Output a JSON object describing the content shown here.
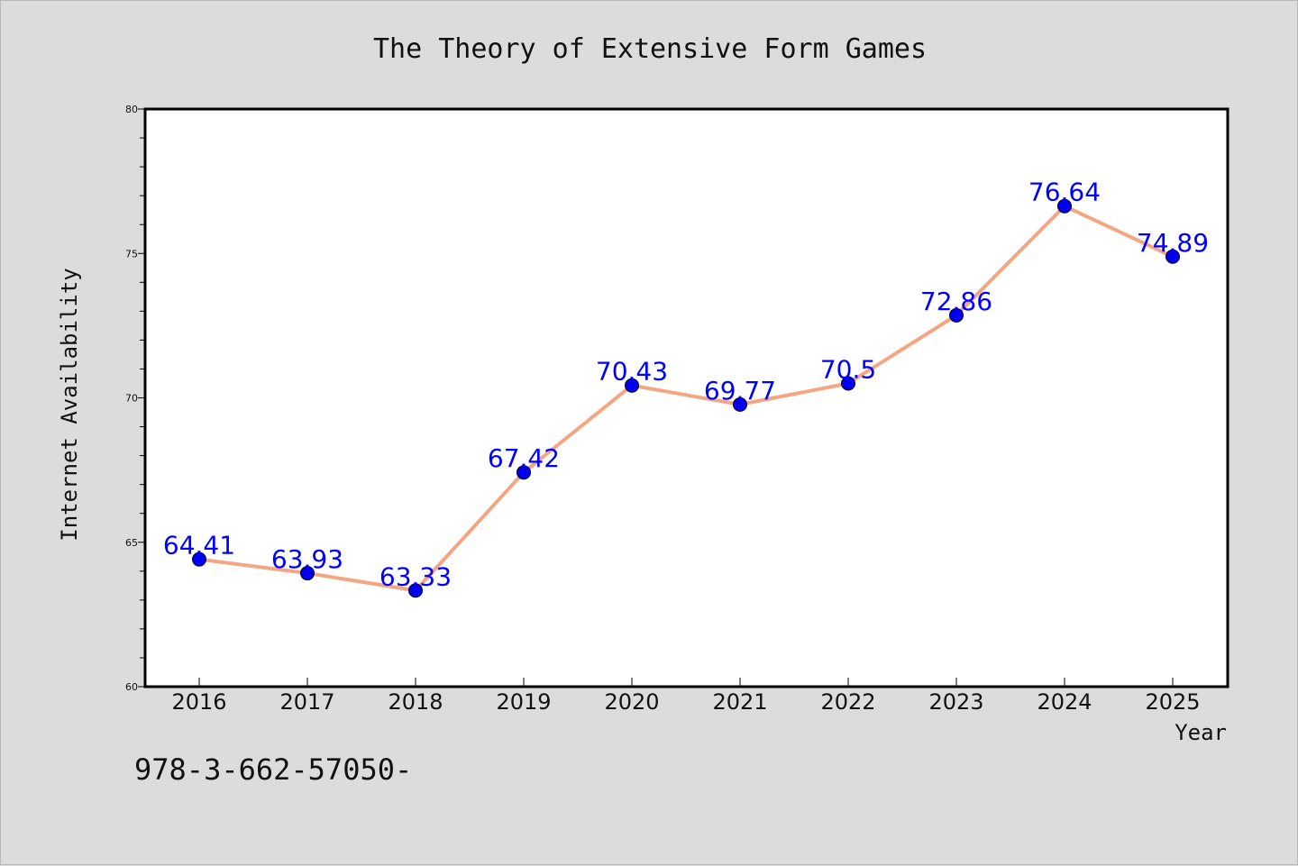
{
  "chart_data": {
    "type": "line",
    "title": "The Theory of Extensive Form Games",
    "xlabel": "Year",
    "ylabel": "Internet Availability",
    "categories": [
      "2016",
      "2017",
      "2018",
      "2019",
      "2020",
      "2021",
      "2022",
      "2023",
      "2024",
      "2025"
    ],
    "series": [
      {
        "values": [
          64.41,
          63.93,
          63.33,
          67.42,
          70.43,
          69.77,
          70.5,
          72.86,
          76.64,
          74.89
        ],
        "labels": [
          "64.41",
          "63.93",
          "63.33",
          "67.42",
          "70.43",
          "69.77",
          "70.5",
          "72.86",
          "76.64",
          "74.89"
        ]
      }
    ],
    "ylim": [
      60,
      80
    ],
    "yticks": [
      "60",
      "65",
      "70",
      "75",
      "80"
    ],
    "grid": false,
    "colors": {
      "line": "#f4a582",
      "marker": "#0000ee",
      "label": "#0000ff",
      "background": "#dcdcdc",
      "plot_area": "#ffffff"
    }
  },
  "footer_text": "978-3-662-57050-"
}
